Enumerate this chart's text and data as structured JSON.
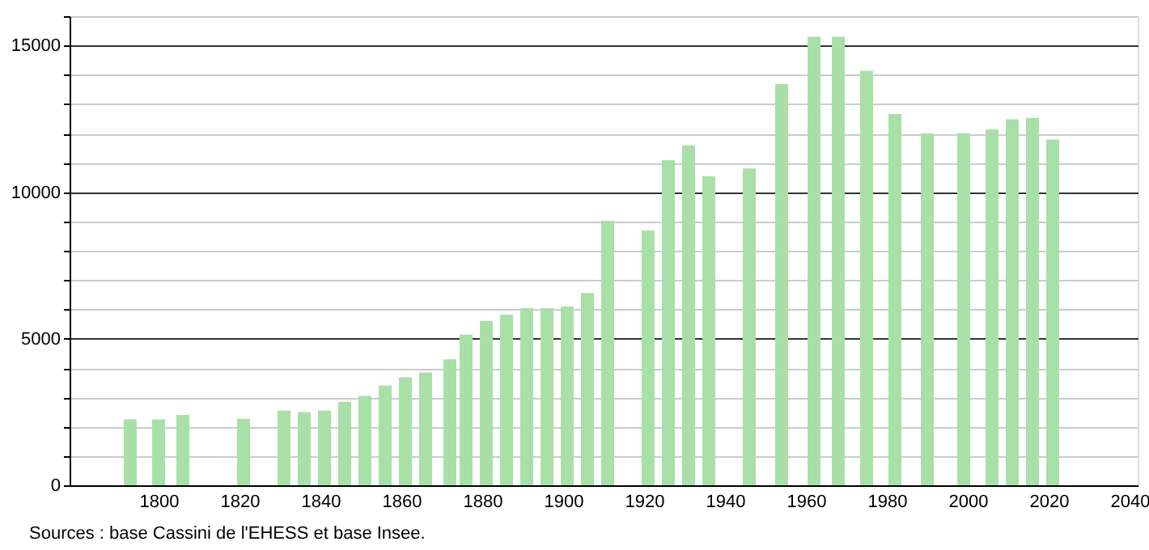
{
  "chart_data": {
    "type": "bar",
    "x": [
      1793,
      1800,
      1806,
      1821,
      1831,
      1836,
      1841,
      1846,
      1851,
      1856,
      1861,
      1866,
      1872,
      1876,
      1881,
      1886,
      1891,
      1896,
      1901,
      1906,
      1911,
      1921,
      1926,
      1931,
      1936,
      1946,
      1954,
      1962,
      1968,
      1975,
      1982,
      1990,
      1999,
      2006,
      2011,
      2016,
      2021
    ],
    "values": [
      2250,
      2250,
      2400,
      2270,
      2550,
      2500,
      2550,
      2850,
      3050,
      3400,
      3680,
      3850,
      4300,
      5140,
      5600,
      5820,
      6040,
      6040,
      6100,
      6560,
      9020,
      8690,
      11090,
      11590,
      10540,
      10810,
      13680,
      15300,
      15300,
      14140,
      12660,
      12010,
      12010,
      12140,
      12480,
      12530,
      11790
    ],
    "color": "#a8e0a8",
    "xlim": [
      1780,
      2040
    ],
    "xticks": [
      1800,
      1820,
      1840,
      1860,
      1880,
      1900,
      1920,
      1940,
      1960,
      1980,
      2000,
      2020,
      2040
    ],
    "ylim": [
      0,
      16000
    ],
    "yticks": [
      0,
      {
        "value": 1000,
        "label": null
      },
      {
        "value": 2000,
        "label": null
      },
      {
        "value": 3000,
        "label": null
      },
      {
        "value": 4000,
        "label": null
      },
      5000,
      {
        "value": 6000,
        "label": null
      },
      {
        "value": 7000,
        "label": null
      },
      {
        "value": 8000,
        "label": null
      },
      {
        "value": 9000,
        "label": null
      },
      10000,
      {
        "value": 11000,
        "label": null
      },
      {
        "value": 12000,
        "label": null
      },
      {
        "value": 13000,
        "label": null
      },
      {
        "value": 14000,
        "label": null
      },
      15000,
      {
        "value": 16000,
        "label": null
      }
    ],
    "grid": "y",
    "annotations": [
      "Sources : base Cassini de l'EHESS et base Insee."
    ]
  }
}
